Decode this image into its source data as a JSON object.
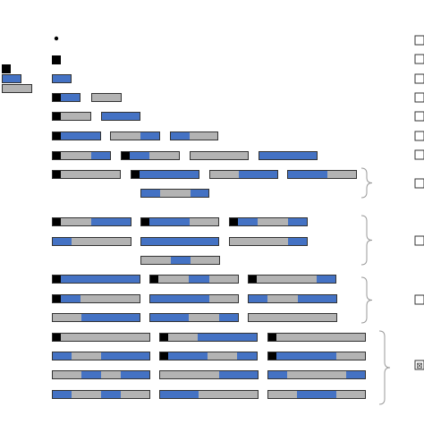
{
  "colors": {
    "black": "#000000",
    "blue": "#4472c4",
    "gray": "#b3b3b3",
    "outline": "#333333",
    "brace": "#999999"
  },
  "legend_marks": [
    {
      "text": ""
    },
    {
      "text": ""
    },
    {
      "text": ""
    },
    {
      "text": ""
    },
    {
      "text": ""
    },
    {
      "text": ""
    },
    {
      "text": ""
    },
    {
      "text": ""
    },
    {
      "text": ""
    },
    {
      "text": ""
    },
    {
      "text": "⊠"
    }
  ]
}
